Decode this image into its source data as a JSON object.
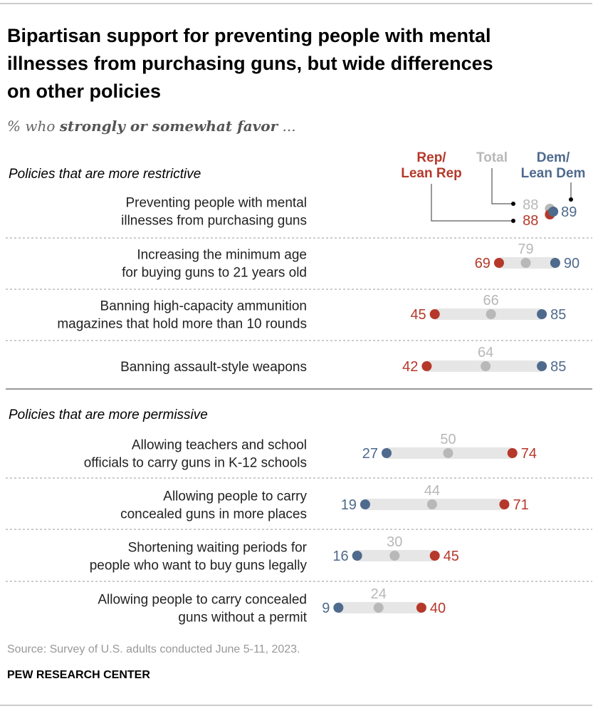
{
  "title_lines": [
    "Bipartisan support for preventing people with mental",
    "illnesses from purchasing guns, but wide differences",
    "on other policies"
  ],
  "subtitle": {
    "prefix": "% who ",
    "bold": "strongly or somewhat favor",
    "suffix": " ..."
  },
  "legend": {
    "rep": [
      "Rep/",
      "Lean Rep"
    ],
    "total": "Total",
    "dem": [
      "Dem/",
      "Lean Dem"
    ]
  },
  "colors": {
    "rep": "#b5382a",
    "dem": "#4e6a8c",
    "total": "#b8b8b8",
    "bar": "#e6e6e6"
  },
  "source": "Source: Survey of U.S. adults conducted June 5-11, 2023.",
  "brand": "PEW RESEARCH CENTER",
  "chart_data": {
    "type": "dot",
    "series_names": [
      "Rep/Lean Rep",
      "Total",
      "Dem/Lean Dem"
    ],
    "sections": [
      {
        "heading": "Policies that are more restrictive",
        "rows": [
          {
            "label": [
              "Preventing people with mental",
              "illnesses from purchasing guns"
            ],
            "rep": 88,
            "total": 88,
            "dem": 89
          },
          {
            "label": [
              "Increasing the minimum age",
              "for buying guns to 21 years old"
            ],
            "rep": 69,
            "total": 79,
            "dem": 90
          },
          {
            "label": [
              "Banning high-capacity ammunition",
              "magazines that hold more than 10 rounds"
            ],
            "rep": 45,
            "total": 66,
            "dem": 85
          },
          {
            "label": [
              "Banning assault-style weapons"
            ],
            "rep": 42,
            "total": 64,
            "dem": 85
          }
        ]
      },
      {
        "heading": "Policies that are more permissive",
        "rows": [
          {
            "label": [
              "Allowing teachers and school",
              "officials to carry guns in K-12 schools"
            ],
            "rep": 74,
            "total": 50,
            "dem": 27
          },
          {
            "label": [
              "Allowing people to carry",
              "concealed guns in more places"
            ],
            "rep": 71,
            "total": 44,
            "dem": 19
          },
          {
            "label": [
              "Shortening waiting periods for",
              "people who want to buy guns legally"
            ],
            "rep": 45,
            "total": 30,
            "dem": 16
          },
          {
            "label": [
              "Allowing people to carry concealed",
              "guns without a permit"
            ],
            "rep": 40,
            "total": 24,
            "dem": 9
          }
        ]
      }
    ]
  }
}
